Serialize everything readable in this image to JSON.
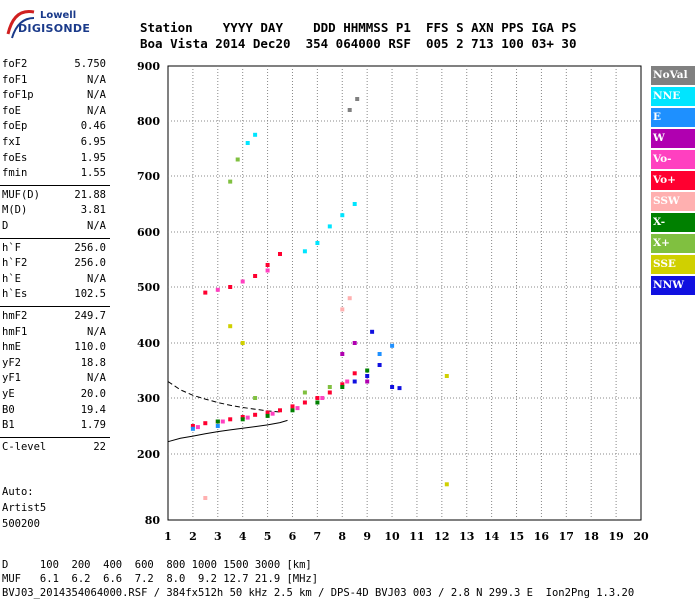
{
  "logo": {
    "line1": "Lowell",
    "line2": "DIGISONDE"
  },
  "header": {
    "line1": "Station    YYYY DAY    DDD HHMMSS P1  FFS S AXN PPS IGA PS",
    "line2": "Boa Vista 2014 Dec20  354 064000 RSF  005 2 713 100 03+ 30"
  },
  "params": [
    {
      "k": "foF2",
      "v": "5.750"
    },
    {
      "k": "foF1",
      "v": "N/A"
    },
    {
      "k": "foF1p",
      "v": "N/A"
    },
    {
      "k": "foE",
      "v": "N/A"
    },
    {
      "k": "foEp",
      "v": "0.46"
    },
    {
      "k": "fxI",
      "v": "6.95"
    },
    {
      "k": "foEs",
      "v": "1.95"
    },
    {
      "k": "fmin",
      "v": "1.55"
    },
    {
      "k": "MUF(D)",
      "v": "21.88"
    },
    {
      "k": "M(D)",
      "v": "3.81"
    },
    {
      "k": "D",
      "v": "N/A"
    },
    {
      "k": "h`F",
      "v": "256.0"
    },
    {
      "k": "h`F2",
      "v": "256.0"
    },
    {
      "k": "h`E",
      "v": "N/A"
    },
    {
      "k": "h`Es",
      "v": "102.5"
    },
    {
      "k": "hmF2",
      "v": "249.7"
    },
    {
      "k": "hmF1",
      "v": "N/A"
    },
    {
      "k": "hmE",
      "v": "110.0"
    },
    {
      "k": "yF2",
      "v": "18.8"
    },
    {
      "k": "yF1",
      "v": "N/A"
    },
    {
      "k": "yE",
      "v": "20.0"
    },
    {
      "k": "B0",
      "v": "19.4"
    },
    {
      "k": "B1",
      "v": "1.79"
    },
    {
      "k": "C-level",
      "v": "22"
    }
  ],
  "artist": {
    "line1": "Auto:",
    "line2": "Artist5",
    "line3": "500200"
  },
  "footer": {
    "line1": "D     100  200  400  600  800 1000 1500 3000 [km]",
    "line2": "MUF   6.1  6.2  6.6  7.2  8.0  9.2 12.7 21.9 [MHz]",
    "line3": "BVJ03_2014354064000.RSF / 384fx512h 50 kHz 2.5 km / DPS-4D BVJ03 003 / 2.8 N 299.3 E  Ion2Png 1.3.20"
  },
  "legend": [
    {
      "name": "NoVal",
      "color": "#808080"
    },
    {
      "name": "NNE",
      "color": "#00e5ff"
    },
    {
      "name": "E",
      "color": "#1e90ff"
    },
    {
      "name": "W",
      "color": "#b000b0"
    },
    {
      "name": "Vo-",
      "color": "#ff40c0"
    },
    {
      "name": "Vo+",
      "color": "#ff0030"
    },
    {
      "name": "SSW",
      "color": "#ffb0b0"
    },
    {
      "name": "X-",
      "color": "#008000"
    },
    {
      "name": "X+",
      "color": "#80c040"
    },
    {
      "name": "SSE",
      "color": "#d0d000"
    },
    {
      "name": "NNW",
      "color": "#1010e0"
    }
  ],
  "chart_data": {
    "type": "scatter",
    "xlim": [
      1,
      20
    ],
    "ylim": [
      80,
      900
    ],
    "x_ticks": [
      "1",
      "2",
      "3",
      "4",
      "5",
      "6",
      "7",
      "8",
      "9",
      "10",
      "11",
      "12",
      "13",
      "14",
      "15",
      "16",
      "17",
      "18",
      "19",
      "20"
    ],
    "y_ticks": [
      "80",
      "200",
      "300",
      "400",
      "500",
      "600",
      "700",
      "800",
      "900"
    ],
    "grid": true,
    "series": [
      {
        "name": "Vo+",
        "color": "#ff0030",
        "points": [
          [
            2.0,
            250
          ],
          [
            2.5,
            255
          ],
          [
            3.0,
            258
          ],
          [
            3.5,
            262
          ],
          [
            4.0,
            266
          ],
          [
            4.5,
            270
          ],
          [
            5.0,
            274
          ],
          [
            5.5,
            278
          ],
          [
            6.0,
            285
          ],
          [
            6.5,
            292
          ],
          [
            7.0,
            300
          ],
          [
            7.5,
            310
          ],
          [
            8.0,
            325
          ],
          [
            8.5,
            345
          ],
          [
            2.5,
            490
          ],
          [
            3.5,
            500
          ],
          [
            4.5,
            520
          ],
          [
            5.0,
            540
          ],
          [
            5.5,
            560
          ]
        ]
      },
      {
        "name": "Vo-",
        "color": "#ff40c0",
        "points": [
          [
            2.2,
            248
          ],
          [
            3.2,
            258
          ],
          [
            4.2,
            265
          ],
          [
            5.2,
            272
          ],
          [
            6.2,
            282
          ],
          [
            7.2,
            300
          ],
          [
            8.2,
            330
          ],
          [
            3.0,
            495
          ],
          [
            4.0,
            510
          ],
          [
            5.0,
            530
          ]
        ]
      },
      {
        "name": "X-",
        "color": "#008000",
        "points": [
          [
            3.0,
            258
          ],
          [
            4.0,
            262
          ],
          [
            5.0,
            268
          ],
          [
            6.0,
            278
          ],
          [
            7.0,
            292
          ],
          [
            8.0,
            320
          ],
          [
            9.0,
            350
          ]
        ]
      },
      {
        "name": "NNW",
        "color": "#1010e0",
        "points": [
          [
            8.5,
            330
          ],
          [
            9.0,
            340
          ],
          [
            9.5,
            360
          ],
          [
            10.0,
            320
          ],
          [
            10.3,
            318
          ],
          [
            9.2,
            420
          ]
        ]
      },
      {
        "name": "NNE",
        "color": "#00e5ff",
        "points": [
          [
            6.5,
            565
          ],
          [
            7.0,
            580
          ],
          [
            7.5,
            610
          ],
          [
            8.0,
            630
          ],
          [
            8.5,
            650
          ],
          [
            4.2,
            760
          ],
          [
            4.5,
            775
          ]
        ]
      },
      {
        "name": "E",
        "color": "#1e90ff",
        "points": [
          [
            2.0,
            245
          ],
          [
            3.0,
            250
          ],
          [
            9.5,
            380
          ],
          [
            10.0,
            395
          ]
        ]
      },
      {
        "name": "W",
        "color": "#b000b0",
        "points": [
          [
            8.0,
            380
          ],
          [
            8.5,
            400
          ],
          [
            9.0,
            330
          ]
        ]
      },
      {
        "name": "SSE",
        "color": "#d0d000",
        "points": [
          [
            3.5,
            430
          ],
          [
            4.0,
            400
          ],
          [
            12.2,
            340
          ],
          [
            12.2,
            145
          ]
        ]
      },
      {
        "name": "X+",
        "color": "#80c040",
        "points": [
          [
            4.5,
            300
          ],
          [
            6.5,
            310
          ],
          [
            7.5,
            320
          ],
          [
            3.5,
            690
          ],
          [
            3.8,
            730
          ]
        ]
      },
      {
        "name": "SSW",
        "color": "#ffb0b0",
        "points": [
          [
            8.0,
            460
          ],
          [
            8.3,
            480
          ],
          [
            2.5,
            120
          ]
        ]
      },
      {
        "name": "NoVal",
        "color": "#808080",
        "points": [
          [
            8.3,
            820
          ],
          [
            8.6,
            840
          ]
        ]
      }
    ],
    "trace_upper": [
      [
        1.0,
        330
      ],
      [
        1.5,
        315
      ],
      [
        2.0,
        305
      ],
      [
        2.5,
        298
      ],
      [
        3.0,
        292
      ],
      [
        3.5,
        287
      ],
      [
        4.0,
        283
      ],
      [
        4.5,
        280
      ],
      [
        5.0,
        277
      ],
      [
        5.5,
        275
      ]
    ],
    "trace_lower": [
      [
        1.0,
        222
      ],
      [
        1.5,
        228
      ],
      [
        2.0,
        232
      ],
      [
        2.5,
        236
      ],
      [
        3.0,
        240
      ],
      [
        3.5,
        243
      ],
      [
        4.0,
        246
      ],
      [
        4.5,
        249
      ],
      [
        5.0,
        252
      ],
      [
        5.5,
        256
      ],
      [
        5.8,
        260
      ]
    ]
  }
}
